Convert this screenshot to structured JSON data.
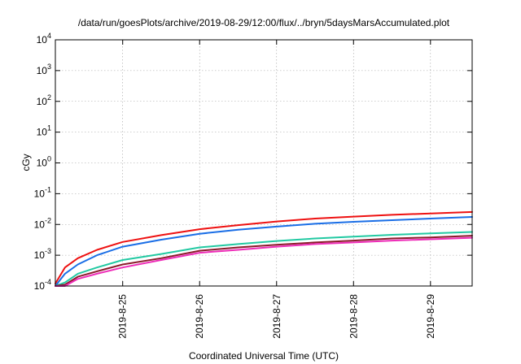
{
  "chart_data": {
    "type": "line",
    "title": "/data/run/goesPlots/archive/2019-08-29/12:00/flux/../bryn/5daysMarsAccumulated.plot",
    "xlabel": "Coordinated Universal Time (UTC)",
    "ylabel": "cGy",
    "yscale": "log",
    "xlim": [
      "2019-08-24T03:00",
      "2019-08-29T13:00"
    ],
    "ylim": [
      0.0001,
      10000
    ],
    "grid": true,
    "x_ticks": [
      "2019-8-25",
      "2019-8-26",
      "2019-8-27",
      "2019-8-28",
      "2019-8-29"
    ],
    "y_ticks": [
      {
        "value": 0.0001,
        "base": "10",
        "exp": "-4"
      },
      {
        "value": 0.001,
        "base": "10",
        "exp": "-3"
      },
      {
        "value": 0.01,
        "base": "10",
        "exp": "-2"
      },
      {
        "value": 0.1,
        "base": "10",
        "exp": "-1"
      },
      {
        "value": 1,
        "base": "10",
        "exp": "0"
      },
      {
        "value": 10,
        "base": "10",
        "exp": "1"
      },
      {
        "value": 100,
        "base": "10",
        "exp": "2"
      },
      {
        "value": 1000,
        "base": "10",
        "exp": "3"
      },
      {
        "value": 10000,
        "base": "10",
        "exp": "4"
      }
    ],
    "x": [
      "2019-08-24T03:00",
      "2019-08-24T06:00",
      "2019-08-24T10:00",
      "2019-08-24T16:00",
      "2019-08-25T00:00",
      "2019-08-25T12:00",
      "2019-08-26T00:00",
      "2019-08-26T12:00",
      "2019-08-27T00:00",
      "2019-08-27T12:00",
      "2019-08-28T00:00",
      "2019-08-28T12:00",
      "2019-08-29T00:00",
      "2019-08-29T13:00"
    ],
    "series": [
      {
        "color": "#ee1111",
        "values": [
          0.00012,
          0.0004,
          0.0008,
          0.0015,
          0.0027,
          0.0045,
          0.007,
          0.0095,
          0.0125,
          0.0155,
          0.018,
          0.0205,
          0.0228,
          0.0255
        ]
      },
      {
        "color": "#1a6ee6",
        "values": [
          0.0001,
          0.00025,
          0.0005,
          0.001,
          0.0019,
          0.0032,
          0.005,
          0.0067,
          0.0085,
          0.0105,
          0.0122,
          0.0138,
          0.0155,
          0.0175
        ]
      },
      {
        "color": "#22c9a2",
        "values": [
          0.0001,
          0.00013,
          0.00025,
          0.0004,
          0.0007,
          0.0011,
          0.0018,
          0.0023,
          0.0029,
          0.0035,
          0.004,
          0.0046,
          0.0051,
          0.0057
        ]
      },
      {
        "color": "#8b1a2a",
        "values": [
          0.0001,
          0.00011,
          0.0002,
          0.0003,
          0.0005,
          0.0008,
          0.0014,
          0.0018,
          0.0022,
          0.0026,
          0.003,
          0.0035,
          0.0038,
          0.0043
        ]
      },
      {
        "color": "#ee2cb8",
        "values": [
          0.0001,
          0.0001,
          0.00017,
          0.00025,
          0.0004,
          0.0007,
          0.0012,
          0.0015,
          0.0019,
          0.0023,
          0.0026,
          0.003,
          0.0033,
          0.0037
        ]
      }
    ]
  }
}
